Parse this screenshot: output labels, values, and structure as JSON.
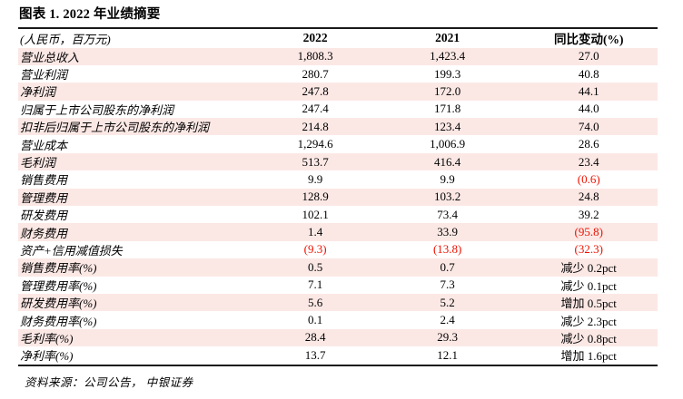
{
  "figure": {
    "title": "图表 1. 2022 年业绩摘要",
    "source_note": "资料来源：公司公告， 中银证券"
  },
  "table": {
    "unit_label": "(人民币，百万元)",
    "columns": [
      "2022",
      "2021",
      "同比变动(%)"
    ],
    "rows": [
      {
        "label": "营业总收入",
        "values": [
          "1,808.3",
          "1,423.4",
          "27.0"
        ]
      },
      {
        "label": "营业利润",
        "values": [
          "280.7",
          "199.3",
          "40.8"
        ]
      },
      {
        "label": "净利润",
        "values": [
          "247.8",
          "172.0",
          "44.1"
        ]
      },
      {
        "label": "归属于上市公司股东的净利润",
        "values": [
          "247.4",
          "171.8",
          "44.0"
        ]
      },
      {
        "label": "扣非后归属于上市公司股东的净利润",
        "values": [
          "214.8",
          "123.4",
          "74.0"
        ]
      },
      {
        "label": "营业成本",
        "values": [
          "1,294.6",
          "1,006.9",
          "28.6"
        ]
      },
      {
        "label": "毛利润",
        "values": [
          "513.7",
          "416.4",
          "23.4"
        ]
      },
      {
        "label": "销售费用",
        "values": [
          "9.9",
          "9.9",
          "(0.6)"
        ]
      },
      {
        "label": "管理费用",
        "values": [
          "128.9",
          "103.2",
          "24.8"
        ]
      },
      {
        "label": "研发费用",
        "values": [
          "102.1",
          "73.4",
          "39.2"
        ]
      },
      {
        "label": "财务费用",
        "values": [
          "1.4",
          "33.9",
          "(95.8)"
        ]
      },
      {
        "label": "资产+信用减值损失",
        "values": [
          "(9.3)",
          "(13.8)",
          "(32.3)"
        ]
      },
      {
        "label": "销售费用率(%)",
        "values": [
          "0.5",
          "0.7",
          "减少 0.2pct"
        ]
      },
      {
        "label": "管理费用率(%)",
        "values": [
          "7.1",
          "7.3",
          "减少 0.1pct"
        ]
      },
      {
        "label": "研发费用率(%)",
        "values": [
          "5.6",
          "5.2",
          "增加 0.5pct"
        ]
      },
      {
        "label": "财务费用率(%)",
        "values": [
          "0.1",
          "2.4",
          "减少 2.3pct"
        ]
      },
      {
        "label": "毛利率(%)",
        "values": [
          "28.4",
          "29.3",
          "减少 0.8pct"
        ]
      },
      {
        "label": "净利率(%)",
        "values": [
          "13.7",
          "12.1",
          "增加 1.6pct"
        ]
      }
    ]
  },
  "colors": {
    "row_band": "#fbe8e5",
    "negative_value": "#ee1100",
    "rule_line": "#1a1a1a",
    "text": "#000000"
  }
}
